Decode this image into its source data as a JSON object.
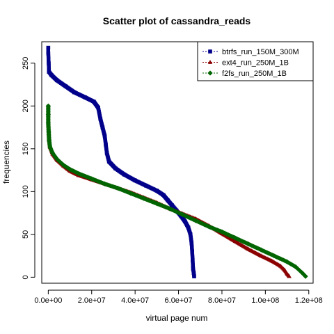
{
  "chart_data": {
    "type": "scatter",
    "title": "Scatter plot of cassandra_reads",
    "xlabel": "virtual page num",
    "ylabel": "frequencies",
    "xlim": [
      -3000000,
      122000000
    ],
    "ylim": [
      -7,
      275
    ],
    "x_ticks": [
      {
        "value": 0,
        "label": "0.0e+00"
      },
      {
        "value": 20000000,
        "label": "2.0e+07"
      },
      {
        "value": 40000000,
        "label": "4.0e+07"
      },
      {
        "value": 60000000,
        "label": "6.0e+07"
      },
      {
        "value": 80000000,
        "label": "8.0e+07"
      },
      {
        "value": 100000000,
        "label": "1.0e+08"
      },
      {
        "value": 120000000,
        "label": "1.2e+08"
      }
    ],
    "y_ticks": [
      {
        "value": 0,
        "label": "0"
      },
      {
        "value": 50,
        "label": "50"
      },
      {
        "value": 100,
        "label": "100"
      },
      {
        "value": 150,
        "label": "150"
      },
      {
        "value": 200,
        "label": "200"
      },
      {
        "value": 250,
        "label": "250"
      }
    ],
    "grid": false,
    "legend_position": "top-right",
    "series": [
      {
        "name": "btrfs_run_150M_300M",
        "color": "#00008B",
        "marker": "square",
        "points": [
          [
            0,
            268
          ],
          [
            0,
            262
          ],
          [
            200000,
            250
          ],
          [
            300000,
            240
          ],
          [
            1500000,
            236
          ],
          [
            4000000,
            230
          ],
          [
            8000000,
            223
          ],
          [
            12000000,
            216
          ],
          [
            17000000,
            210
          ],
          [
            21000000,
            205
          ],
          [
            23000000,
            198
          ],
          [
            24000000,
            185
          ],
          [
            25000000,
            175
          ],
          [
            26000000,
            165
          ],
          [
            26500000,
            155
          ],
          [
            27000000,
            145
          ],
          [
            28000000,
            135
          ],
          [
            31000000,
            127
          ],
          [
            35000000,
            120
          ],
          [
            40000000,
            113
          ],
          [
            45000000,
            107
          ],
          [
            50000000,
            101
          ],
          [
            53000000,
            96
          ],
          [
            55000000,
            90
          ],
          [
            57000000,
            84
          ],
          [
            59000000,
            78
          ],
          [
            61000000,
            72
          ],
          [
            63000000,
            65
          ],
          [
            64500000,
            58
          ],
          [
            65500000,
            50
          ],
          [
            66000000,
            40
          ],
          [
            66300000,
            30
          ],
          [
            66500000,
            20
          ],
          [
            66700000,
            10
          ],
          [
            67000000,
            5
          ],
          [
            67200000,
            1
          ]
        ]
      },
      {
        "name": "ext4_run_250M_1B",
        "color": "#8B0000",
        "marker": "triangle",
        "points": [
          [
            0,
            185
          ],
          [
            0,
            178
          ],
          [
            200000,
            168
          ],
          [
            400000,
            160
          ],
          [
            800000,
            152
          ],
          [
            2000000,
            144
          ],
          [
            4000000,
            137
          ],
          [
            7000000,
            130
          ],
          [
            10000000,
            124
          ],
          [
            14000000,
            119
          ],
          [
            20000000,
            114
          ],
          [
            26000000,
            109
          ],
          [
            32000000,
            104
          ],
          [
            38000000,
            99
          ],
          [
            44000000,
            93
          ],
          [
            50000000,
            87
          ],
          [
            56000000,
            80
          ],
          [
            62000000,
            74
          ],
          [
            68000000,
            68
          ],
          [
            74000000,
            60
          ],
          [
            80000000,
            51
          ],
          [
            86000000,
            42
          ],
          [
            92000000,
            33
          ],
          [
            98000000,
            25
          ],
          [
            103000000,
            19
          ],
          [
            107000000,
            13
          ],
          [
            109000000,
            8
          ],
          [
            110000000,
            4
          ],
          [
            111000000,
            1
          ]
        ]
      },
      {
        "name": "f2fs_run_250M_1B",
        "color": "#006400",
        "marker": "diamond",
        "points": [
          [
            0,
            200
          ],
          [
            0,
            190
          ],
          [
            0,
            180
          ],
          [
            200000,
            170
          ],
          [
            400000,
            160
          ],
          [
            800000,
            152
          ],
          [
            2000000,
            145
          ],
          [
            4000000,
            138
          ],
          [
            7000000,
            131
          ],
          [
            10000000,
            126
          ],
          [
            14000000,
            121
          ],
          [
            20000000,
            115
          ],
          [
            26000000,
            109
          ],
          [
            32000000,
            104
          ],
          [
            38000000,
            98
          ],
          [
            44000000,
            92
          ],
          [
            50000000,
            86
          ],
          [
            56000000,
            80
          ],
          [
            62000000,
            73
          ],
          [
            68000000,
            66
          ],
          [
            74000000,
            59
          ],
          [
            80000000,
            53
          ],
          [
            86000000,
            46
          ],
          [
            92000000,
            39
          ],
          [
            98000000,
            32
          ],
          [
            104000000,
            25
          ],
          [
            110000000,
            18
          ],
          [
            114000000,
            12
          ],
          [
            117000000,
            5
          ],
          [
            118500000,
            1
          ]
        ]
      }
    ]
  }
}
